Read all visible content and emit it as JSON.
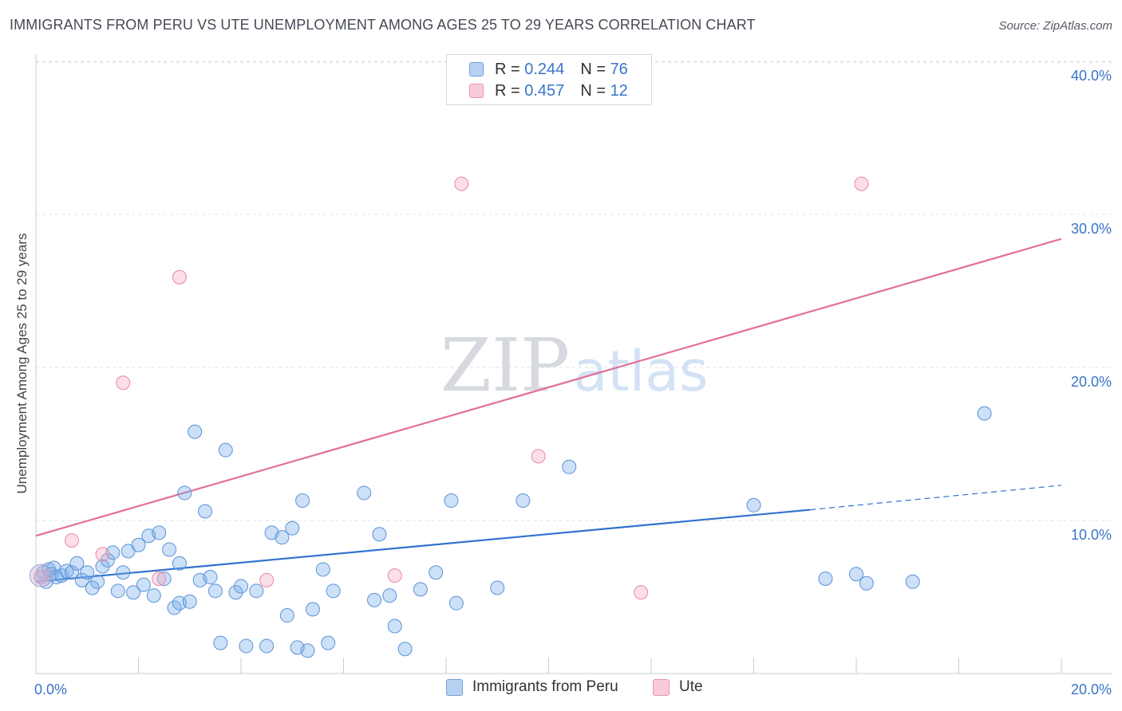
{
  "header": {
    "title": "IMMIGRANTS FROM PERU VS UTE UNEMPLOYMENT AMONG AGES 25 TO 29 YEARS CORRELATION CHART",
    "source": "Source: ZipAtlas.com"
  },
  "watermark": {
    "zip": "ZIP",
    "atlas": "atlas"
  },
  "legend": {
    "rows": [
      {
        "r_label": "R =",
        "r_value": "0.244",
        "n_label": "N =",
        "n_value": "76"
      },
      {
        "r_label": "R =",
        "r_value": "0.457",
        "n_label": "N =",
        "n_value": "12"
      }
    ]
  },
  "chart_data": {
    "type": "scatter",
    "title": "IMMIGRANTS FROM PERU VS UTE UNEMPLOYMENT AMONG AGES 25 TO 29 YEARS CORRELATION CHART",
    "xlabel": "",
    "ylabel": "Unemployment Among Ages 25 to 29 years",
    "xlim": [
      0,
      20
    ],
    "ylim": [
      0,
      40
    ],
    "x_tick_labels": [
      "0.0%",
      "20.0%"
    ],
    "y_ticks": [
      10,
      20,
      30,
      40
    ],
    "y_tick_labels": [
      "10.0%",
      "20.0%",
      "30.0%",
      "40.0%"
    ],
    "grid": true,
    "legend_position": "top-center",
    "series": [
      {
        "name": "Immigrants from Peru",
        "color": "#7aaeea",
        "edge": "#5b93d6",
        "trend_color": "#2f72cf",
        "r": 0.244,
        "n": 76,
        "trend": {
          "x0": 0,
          "y0": 6.0,
          "x1": 15.1,
          "y1": 10.7,
          "dash_to_x": 20,
          "dash_to_y": 12.3
        },
        "points": [
          [
            0.1,
            6.3
          ],
          [
            0.15,
            6.6
          ],
          [
            0.2,
            6.0
          ],
          [
            0.25,
            6.8
          ],
          [
            0.3,
            6.5
          ],
          [
            0.35,
            6.9
          ],
          [
            0.4,
            6.3
          ],
          [
            0.5,
            6.4
          ],
          [
            0.6,
            6.7
          ],
          [
            0.7,
            6.6
          ],
          [
            0.8,
            7.2
          ],
          [
            0.9,
            6.1
          ],
          [
            1.0,
            6.6
          ],
          [
            1.1,
            5.6
          ],
          [
            1.2,
            6.0
          ],
          [
            1.3,
            7.0
          ],
          [
            1.4,
            7.4
          ],
          [
            1.5,
            7.9
          ],
          [
            1.6,
            5.4
          ],
          [
            1.7,
            6.6
          ],
          [
            1.8,
            8.0
          ],
          [
            1.9,
            5.3
          ],
          [
            2.0,
            8.4
          ],
          [
            2.1,
            5.8
          ],
          [
            2.2,
            9.0
          ],
          [
            2.3,
            5.1
          ],
          [
            2.4,
            9.2
          ],
          [
            2.5,
            6.2
          ],
          [
            2.6,
            8.1
          ],
          [
            2.7,
            4.3
          ],
          [
            2.8,
            4.6
          ],
          [
            2.8,
            7.2
          ],
          [
            2.9,
            11.8
          ],
          [
            3.0,
            4.7
          ],
          [
            3.1,
            15.8
          ],
          [
            3.2,
            6.1
          ],
          [
            3.3,
            10.6
          ],
          [
            3.4,
            6.3
          ],
          [
            3.5,
            5.4
          ],
          [
            3.6,
            2.0
          ],
          [
            3.7,
            14.6
          ],
          [
            3.9,
            5.3
          ],
          [
            4.0,
            5.7
          ],
          [
            4.1,
            1.8
          ],
          [
            4.3,
            5.4
          ],
          [
            4.5,
            1.8
          ],
          [
            4.6,
            9.2
          ],
          [
            4.8,
            8.9
          ],
          [
            4.9,
            3.8
          ],
          [
            5.0,
            9.5
          ],
          [
            5.1,
            1.7
          ],
          [
            5.2,
            11.3
          ],
          [
            5.3,
            1.5
          ],
          [
            5.4,
            4.2
          ],
          [
            5.6,
            6.8
          ],
          [
            5.7,
            2.0
          ],
          [
            5.8,
            5.4
          ],
          [
            6.4,
            11.8
          ],
          [
            6.6,
            4.8
          ],
          [
            6.7,
            9.1
          ],
          [
            6.9,
            5.1
          ],
          [
            7.0,
            3.1
          ],
          [
            7.2,
            1.6
          ],
          [
            7.5,
            5.5
          ],
          [
            7.8,
            6.6
          ],
          [
            8.1,
            11.3
          ],
          [
            8.2,
            4.6
          ],
          [
            9.0,
            5.6
          ],
          [
            9.5,
            11.3
          ],
          [
            10.4,
            13.5
          ],
          [
            14.0,
            11.0
          ],
          [
            15.4,
            6.2
          ],
          [
            16.0,
            6.5
          ],
          [
            16.2,
            5.9
          ],
          [
            17.1,
            6.0
          ],
          [
            18.5,
            17.0
          ]
        ]
      },
      {
        "name": "Ute",
        "color": "#f4a8c0",
        "edge": "#e888a6",
        "trend_color": "#e2709a",
        "r": 0.457,
        "n": 12,
        "trend": {
          "x0": 0,
          "y0": 9.0,
          "x1": 20,
          "y1": 28.4
        },
        "points": [
          [
            0.1,
            6.3
          ],
          [
            0.7,
            8.7
          ],
          [
            1.3,
            7.8
          ],
          [
            1.7,
            19.0
          ],
          [
            2.4,
            6.2
          ],
          [
            2.8,
            25.9
          ],
          [
            4.5,
            6.1
          ],
          [
            7.0,
            6.4
          ],
          [
            8.3,
            32.0
          ],
          [
            9.8,
            14.2
          ],
          [
            11.8,
            5.3
          ],
          [
            16.1,
            32.0
          ]
        ]
      }
    ]
  }
}
